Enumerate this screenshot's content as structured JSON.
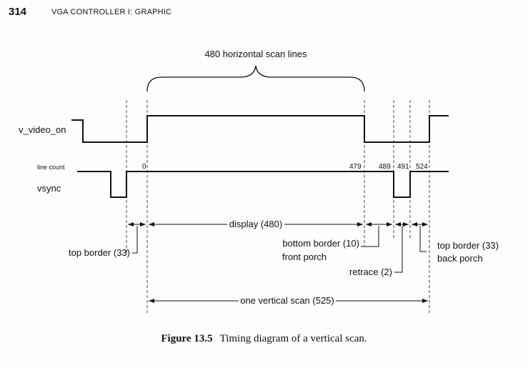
{
  "header": {
    "page_number": "314",
    "chapter_title": "VGA CONTROLLER I: GRAPHIC"
  },
  "diagram": {
    "scan_lines_label": "480 horizontal scan lines",
    "signals": {
      "v_video_on": "v_video_on",
      "line_count": "line count",
      "vsync": "vsync"
    },
    "counts": {
      "c0": "0",
      "c479": "479",
      "c489": "489",
      "c491": "491",
      "c524": "524"
    },
    "labels": {
      "display": "display (480)",
      "top_border_left": "top border (33)",
      "bottom_border": "bottom border (10)",
      "front_porch": "front porch",
      "retrace": "retrace (2)",
      "top_border_right": "top border (33)",
      "back_porch": "back porch",
      "one_vertical_scan": "one vertical scan (525)"
    }
  },
  "caption": {
    "label": "Figure 13.5",
    "text": "Timing diagram of a vertical scan."
  }
}
